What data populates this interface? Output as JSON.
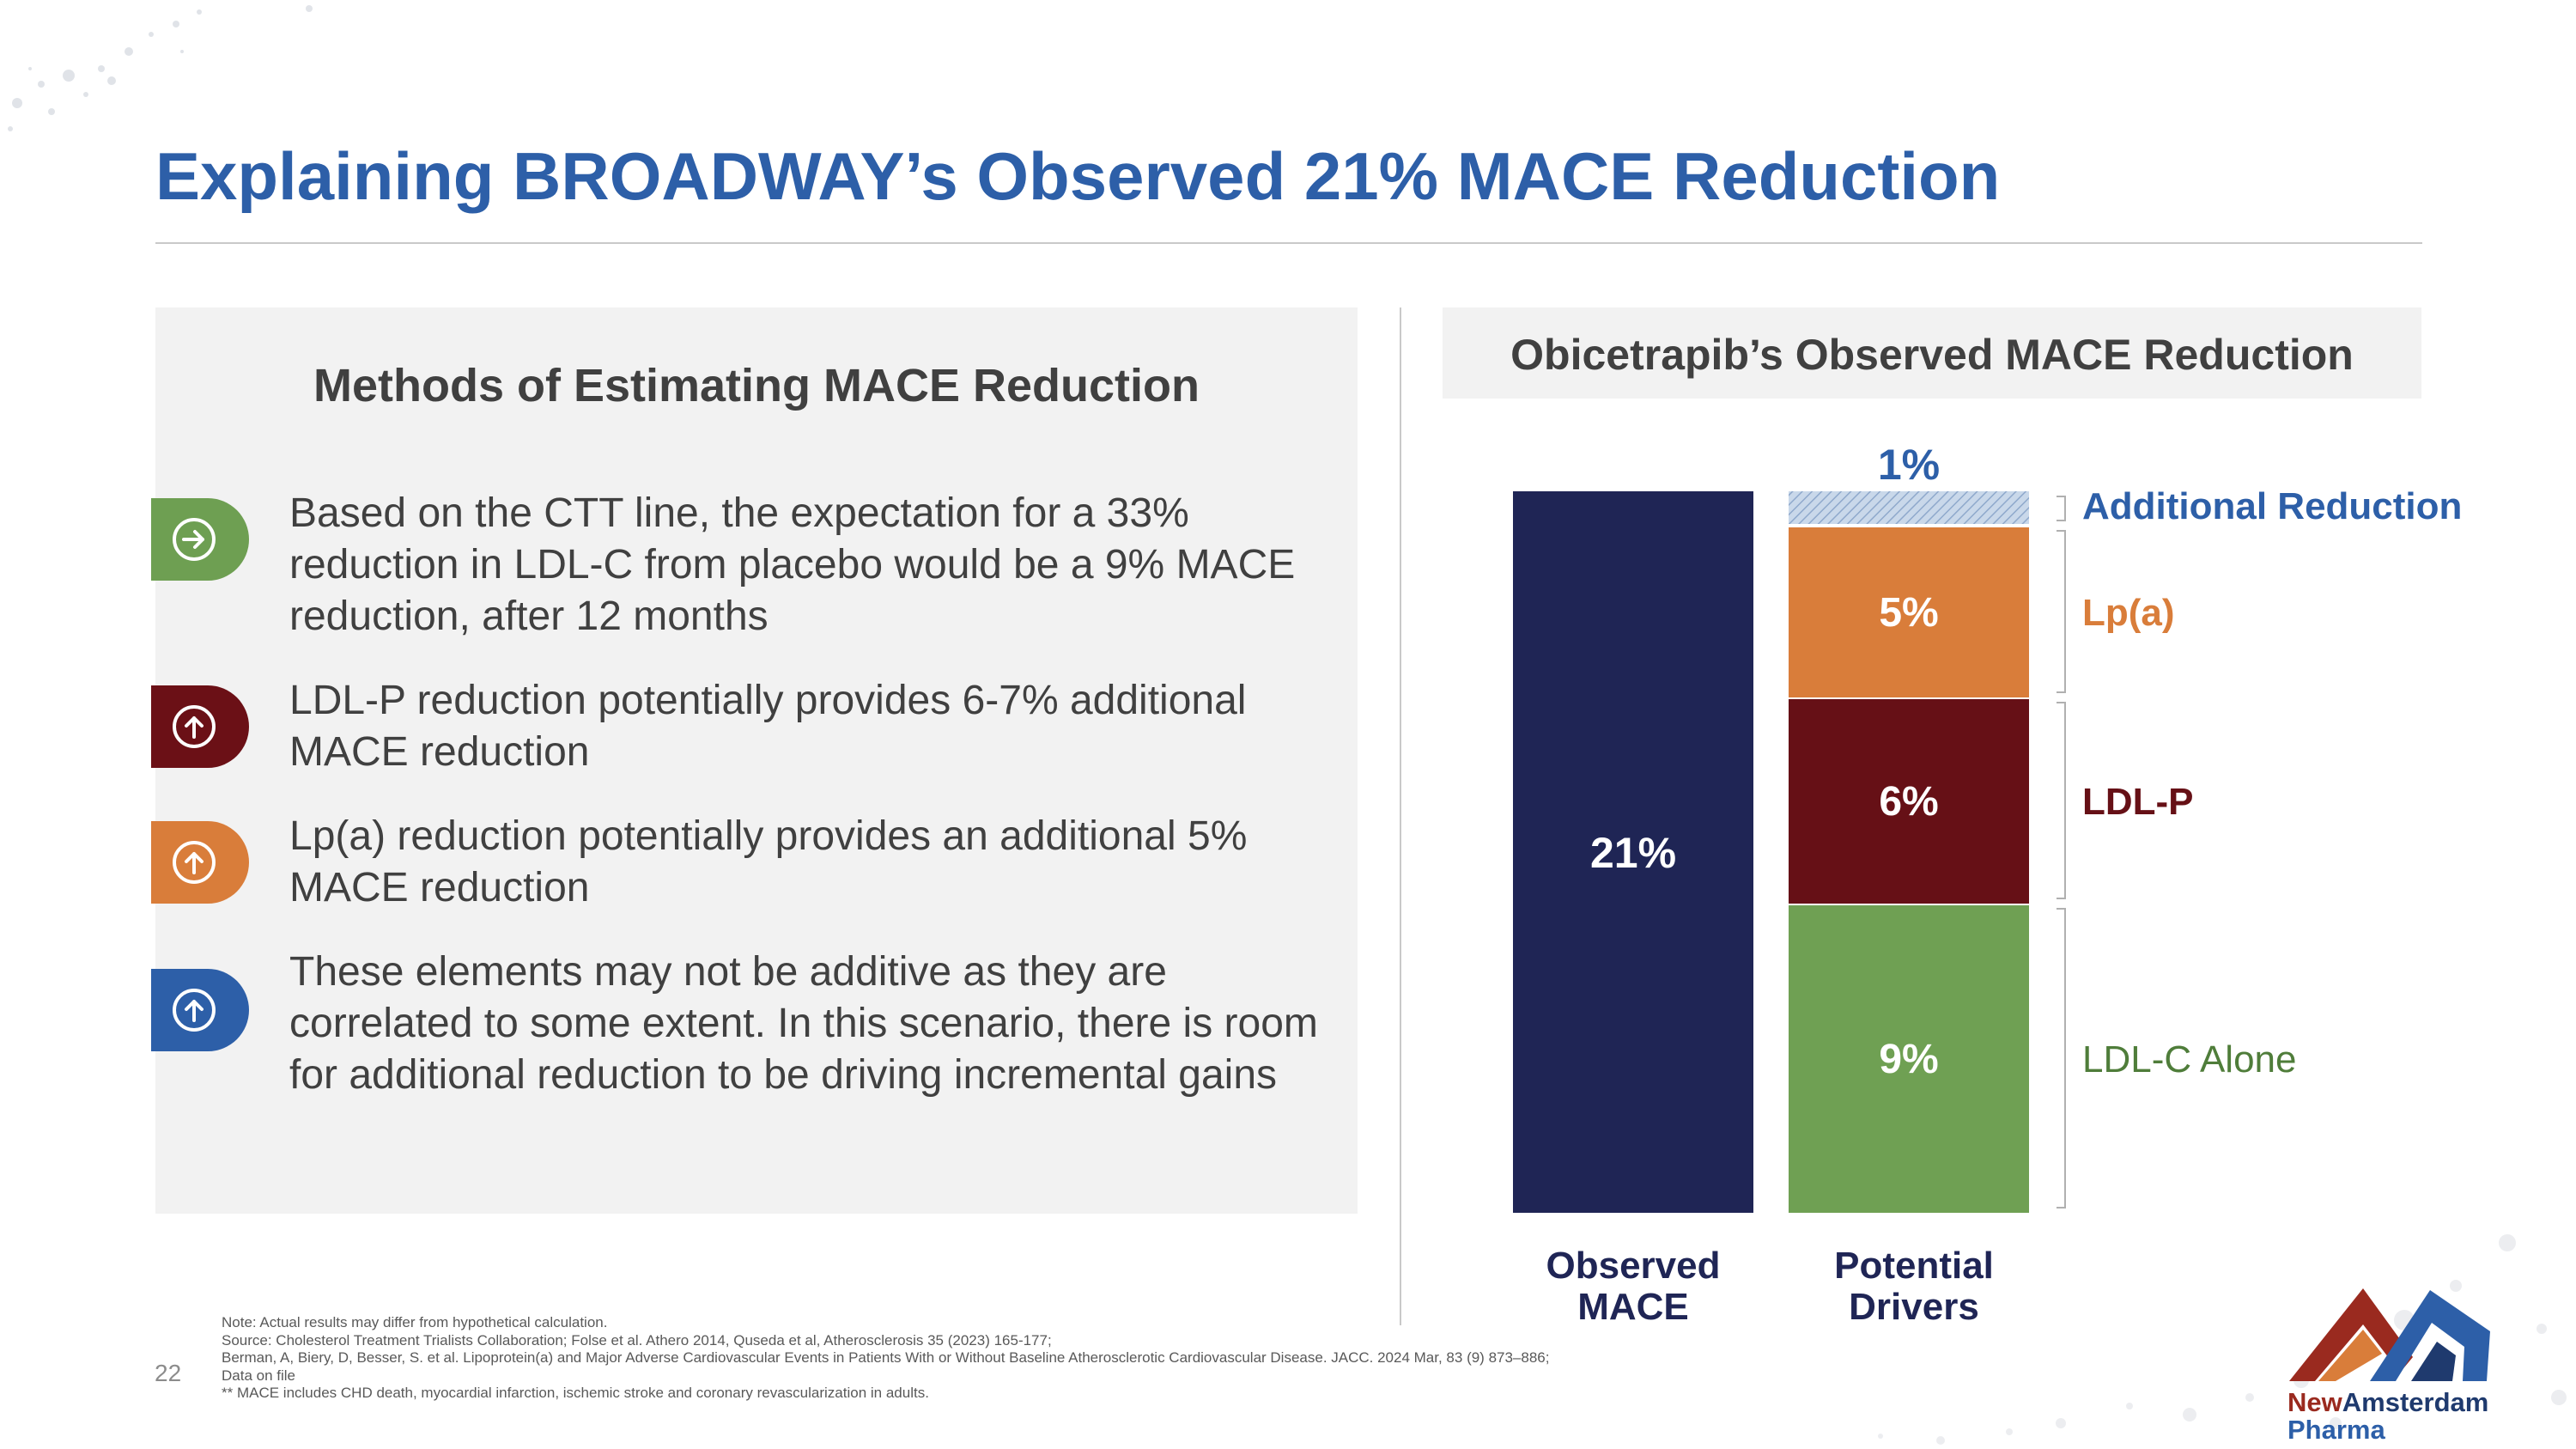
{
  "page": {
    "title": "Explaining BROADWAY’s Observed 21% MACE Reduction",
    "page_number": "22"
  },
  "methods": {
    "heading": "Methods of Estimating MACE Reduction",
    "items": [
      {
        "text": "Based on the CTT line, the expectation for a 33% reduction in LDL-C from placebo would be a 9% MACE reduction, after 12 months",
        "icon": "arrow-right-circle-icon",
        "color": "#6e9f52"
      },
      {
        "text": "LDL-P reduction potentially provides 6-7% additional MACE reduction",
        "icon": "arrow-up-circle-icon",
        "color": "#6b1016"
      },
      {
        "text": "Lp(a) reduction potentially provides an additional 5% MACE reduction",
        "icon": "arrow-up-circle-icon",
        "color": "#d97d3a"
      },
      {
        "text": "These elements may not be additive as they are correlated to some extent. In this scenario, there is room for additional reduction to be driving incremental gains",
        "icon": "arrow-up-circle-icon",
        "color": "#2d5fa8"
      }
    ]
  },
  "chart_data": {
    "type": "bar",
    "title": "Obicetrapib’s Observed MACE Reduction",
    "categories": [
      "Observed MACE",
      "Potential Drivers"
    ],
    "category_labels": [
      [
        "Observed",
        "MACE"
      ],
      [
        "Potential",
        "Drivers"
      ]
    ],
    "observed": {
      "value": 21,
      "label": "21%",
      "color": "#1f2555"
    },
    "series": [
      {
        "name": "LDL-C Alone",
        "values": [
          0,
          9
        ],
        "label": "9%",
        "color": "#6fa053",
        "legend_color": "#4f7d3a"
      },
      {
        "name": "LDL-P",
        "values": [
          0,
          6
        ],
        "label": "6%",
        "color": "#661016",
        "legend_color": "#661016"
      },
      {
        "name": "Lp(a)",
        "values": [
          0,
          5
        ],
        "label": "5%",
        "color": "#d97d3a",
        "legend_color": "#d97d3a"
      },
      {
        "name": "Additional Reduction",
        "values": [
          0,
          1
        ],
        "label": "1%",
        "color": "#b8cce4",
        "legend_color": "#2d5fa8"
      }
    ],
    "ylim": [
      0,
      21
    ],
    "stacked": true,
    "legend": "right"
  },
  "footer": {
    "notes": [
      "Note: Actual results may differ from hypothetical calculation.",
      "Source: Cholesterol Treatment Trialists Collaboration; Folse et al. Athero 2014, Quseda et al, Atherosclerosis 35 (2023) 165-177;",
      "Berman, A, Biery, D, Besser, S. et al. Lipoprotein(a) and Major Adverse Cardiovascular Events in Patients With or Without Baseline Atherosclerotic Cardiovascular Disease. JACC. 2024 Mar, 83 (9) 873–886;",
      "Data on file",
      "** MACE includes CHD death, myocardial infarction, ischemic stroke and coronary revascularization in adults."
    ]
  },
  "logo": {
    "word1_a": "New",
    "word1_b": "Amsterdam",
    "word2": "Pharma"
  }
}
